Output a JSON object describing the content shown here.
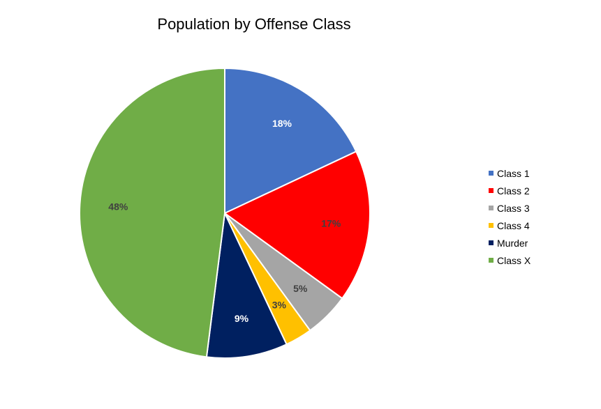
{
  "chart_data": {
    "type": "pie",
    "title": "Population by Offense Class",
    "start_angle_deg": 0,
    "direction": "clockwise",
    "legend_position": "right",
    "slices": [
      {
        "label": "Class 1",
        "value": 18,
        "display": "18%",
        "color": "#4472C4",
        "label_color": "#FFFFFF"
      },
      {
        "label": "Class 2",
        "value": 17,
        "display": "17%",
        "color": "#FF0000",
        "label_color": "#404040"
      },
      {
        "label": "Class 3",
        "value": 5,
        "display": "5%",
        "color": "#A5A5A5",
        "label_color": "#404040"
      },
      {
        "label": "Class 4",
        "value": 3,
        "display": "3%",
        "color": "#FFC000",
        "label_color": "#404040"
      },
      {
        "label": "Murder",
        "value": 9,
        "display": "9%",
        "color": "#002060",
        "label_color": "#FFFFFF"
      },
      {
        "label": "Class X",
        "value": 48,
        "display": "48%",
        "color": "#70AD47",
        "label_color": "#404040"
      }
    ]
  }
}
